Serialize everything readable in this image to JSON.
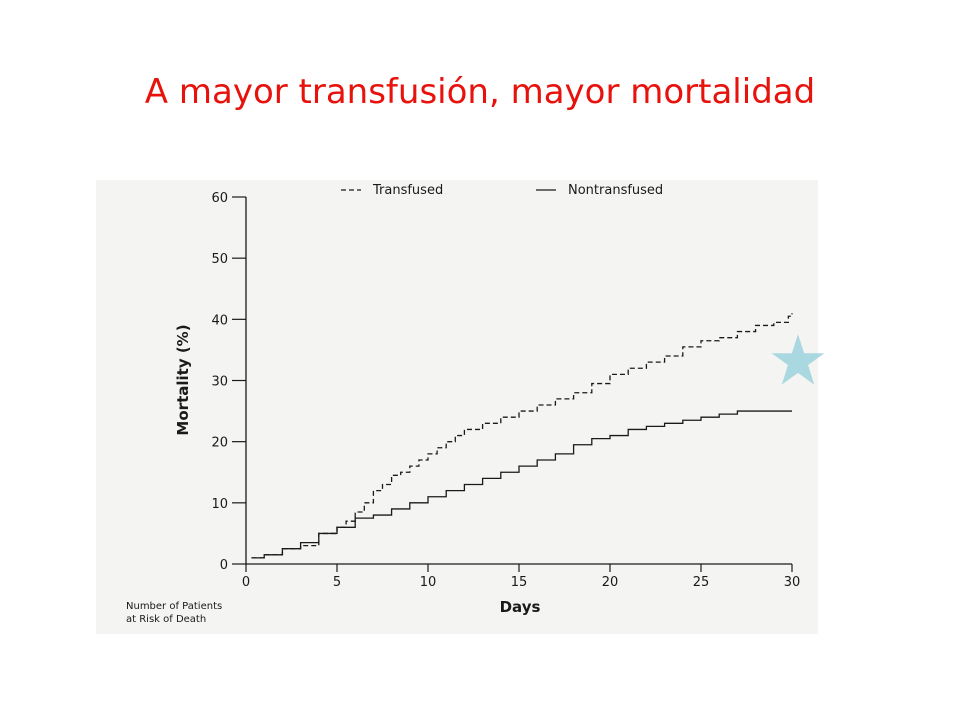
{
  "slide": {
    "title": "A mayor transfusión, mayor mortalidad",
    "title_color": "#e8120c"
  },
  "footnote": {
    "lines": [
      "Number of Patients",
      "at Risk of Death"
    ]
  },
  "decoration": {
    "star_icon": "star-icon",
    "star_color": "#a9d8e0"
  },
  "chart_data": {
    "type": "line",
    "xlabel": "Days",
    "ylabel": "Mortality (%)",
    "xlim": [
      0,
      30
    ],
    "ylim": [
      0,
      60
    ],
    "xticks": [
      0,
      5,
      10,
      15,
      20,
      25,
      30
    ],
    "yticks": [
      0,
      10,
      20,
      30,
      40,
      50,
      60
    ],
    "grid": false,
    "legend_position": "top",
    "series": [
      {
        "name": "Transfused",
        "style": "dashed",
        "color": "#1a1a1a",
        "step": true,
        "x": [
          0.3,
          1,
          2,
          3,
          4,
          5,
          5.5,
          6,
          6.5,
          7,
          7.5,
          8,
          8.5,
          9,
          9.5,
          10,
          10.5,
          11,
          11.5,
          12,
          13,
          14,
          15,
          16,
          17,
          18,
          19,
          20,
          21,
          22,
          23,
          24,
          25,
          26,
          27,
          28,
          29,
          29.8,
          30
        ],
        "y": [
          1,
          1.5,
          2.5,
          3,
          5,
          6,
          7,
          8.5,
          10,
          12,
          13,
          14.5,
          15,
          16,
          17,
          18,
          19,
          20,
          21,
          22,
          23,
          24,
          25,
          26,
          27,
          28,
          29.5,
          31,
          32,
          33,
          34,
          35.5,
          36.5,
          37,
          38,
          39,
          39.5,
          40.5,
          41
        ]
      },
      {
        "name": "Nontransfused",
        "style": "solid",
        "color": "#1a1a1a",
        "step": true,
        "x": [
          0.3,
          1,
          2,
          3,
          4,
          5,
          6,
          7,
          8,
          9,
          10,
          11,
          12,
          13,
          14,
          15,
          16,
          17,
          18,
          19,
          20,
          21,
          22,
          23,
          24,
          25,
          26,
          27,
          28,
          29,
          30
        ],
        "y": [
          1,
          1.5,
          2.5,
          3.5,
          5,
          6,
          7.5,
          8,
          9,
          10,
          11,
          12,
          13,
          14,
          15,
          16,
          17,
          18,
          19.5,
          20.5,
          21,
          22,
          22.5,
          23,
          23.5,
          24,
          24.5,
          25,
          25,
          25,
          25
        ]
      }
    ]
  }
}
